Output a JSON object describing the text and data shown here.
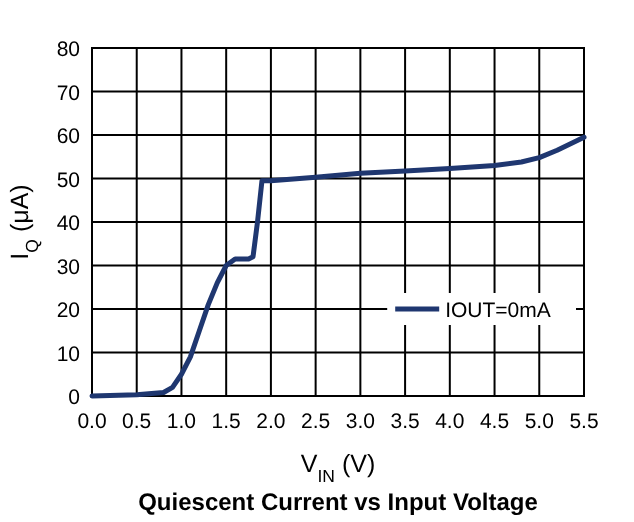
{
  "chart_data": {
    "type": "line",
    "title": "Quiescent Current vs Input Voltage",
    "xlabel": "V$_{IN}$ (V)",
    "ylabel": "I$_{Q}$ (μA)",
    "x": [
      0,
      0.5,
      0.8,
      0.9,
      1.0,
      1.1,
      1.2,
      1.3,
      1.4,
      1.5,
      1.6,
      1.75,
      1.8,
      1.85,
      1.9,
      2.0,
      2.5,
      3.0,
      3.5,
      4.0,
      4.5,
      4.8,
      5.0,
      5.2,
      5.5
    ],
    "series": [
      {
        "name": "IOUT=0mA",
        "color": "#1f3770",
        "values": [
          0,
          0.3,
          0.8,
          2,
          5,
          9,
          15,
          21,
          26,
          30,
          31.5,
          31.5,
          32,
          40,
          49.5,
          49.5,
          50.3,
          51.2,
          51.7,
          52.3,
          53,
          53.8,
          54.8,
          56.5,
          59.5
        ]
      }
    ],
    "xlim": [
      0,
      5.5
    ],
    "xticks": [
      {
        "value": 0,
        "label": "0.0"
      },
      0.5,
      {
        "value": 1,
        "label": "1.0"
      },
      1.5,
      {
        "value": 2,
        "label": "2.0"
      },
      2.5,
      {
        "value": 3,
        "label": "3.0"
      },
      3.5,
      {
        "value": 4,
        "label": "4.0"
      },
      4.5,
      {
        "value": 5,
        "label": "5.0"
      },
      5.5
    ],
    "ylim": [
      0,
      80
    ],
    "yticks": [
      0,
      10,
      20,
      30,
      40,
      50,
      60,
      70,
      80
    ],
    "grid": true,
    "legend": "right",
    "line_style": "solid"
  }
}
